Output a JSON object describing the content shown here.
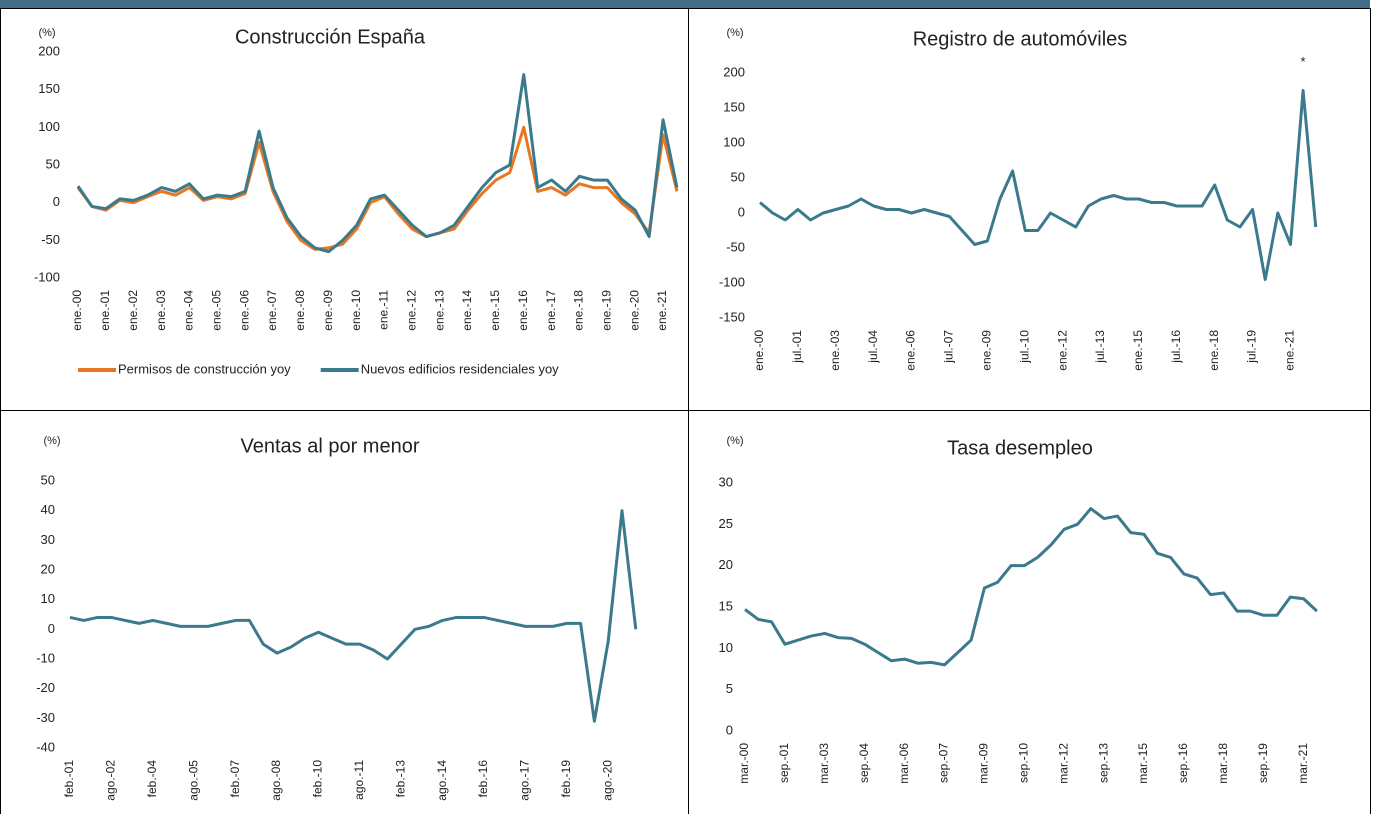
{
  "chart_data": [
    {
      "type": "line",
      "title": "Construcción España",
      "y_label": "(%)",
      "categories": [
        "ene.-00",
        null,
        "ene.-01",
        null,
        "ene.-02",
        null,
        "ene.-03",
        null,
        "ene.-04",
        null,
        "ene.-05",
        null,
        "ene.-06",
        null,
        "ene.-07",
        null,
        "ene.-08",
        null,
        "ene.-09",
        null,
        "ene.-10",
        null,
        "ene.-11",
        null,
        "ene.-12",
        null,
        "ene.-13",
        null,
        "ene.-14",
        null,
        "ene.-15",
        null,
        "ene.-16",
        null,
        "ene.-17",
        null,
        "ene.-18",
        null,
        "ene.-19",
        null,
        "ene.-20",
        null,
        "ene.-21",
        null
      ],
      "series": [
        {
          "name": "Permisos de construcción yoy",
          "color": "#e87722",
          "values": [
            20,
            -5,
            -10,
            3,
            0,
            8,
            15,
            10,
            20,
            3,
            8,
            5,
            12,
            80,
            15,
            -25,
            -50,
            -62,
            -60,
            -55,
            -35,
            0,
            8,
            -15,
            -35,
            -45,
            -40,
            -35,
            -10,
            12,
            30,
            40,
            100,
            15,
            20,
            10,
            25,
            20,
            20,
            0,
            -15,
            -40,
            90,
            15
          ]
        },
        {
          "name": "Nuevos edificios residenciales yoy",
          "color": "#3a7a8c",
          "values": [
            22,
            -5,
            -8,
            5,
            3,
            10,
            20,
            15,
            25,
            5,
            10,
            8,
            15,
            95,
            20,
            -20,
            -45,
            -60,
            -65,
            -50,
            -30,
            5,
            10,
            -10,
            -30,
            -45,
            -40,
            -30,
            -5,
            20,
            40,
            50,
            170,
            20,
            30,
            15,
            35,
            30,
            30,
            5,
            -10,
            -45,
            110,
            20
          ]
        }
      ],
      "ylim": [
        -100,
        200
      ],
      "yticks": [
        -100,
        -50,
        0,
        50,
        100,
        150,
        200
      ],
      "legend": "bottom"
    },
    {
      "type": "line",
      "title": "Registro de automóviles",
      "y_label": "(%)",
      "annotation": "*",
      "categories": [
        "ene.-00",
        null,
        null,
        "jul.-01",
        null,
        null,
        "ene.-03",
        null,
        null,
        "jul.-04",
        null,
        null,
        "ene.-06",
        null,
        null,
        "jul.-07",
        null,
        null,
        "ene.-09",
        null,
        null,
        "jul.-10",
        null,
        null,
        "ene.-12",
        null,
        null,
        "jul.-13",
        null,
        null,
        "ene.-15",
        null,
        null,
        "jul.-16",
        null,
        null,
        "ene.-18",
        null,
        null,
        "jul.-19",
        null,
        null,
        "ene.-21",
        null,
        null
      ],
      "series": [
        {
          "name": "Registro de automóviles",
          "color": "#3a7a8c",
          "values": [
            15,
            0,
            -10,
            5,
            -10,
            0,
            5,
            10,
            20,
            10,
            5,
            5,
            0,
            5,
            0,
            -5,
            -25,
            -45,
            -40,
            20,
            60,
            -25,
            -25,
            0,
            -10,
            -20,
            10,
            20,
            25,
            20,
            20,
            15,
            15,
            10,
            10,
            10,
            40,
            -10,
            -20,
            5,
            -95,
            0,
            -45,
            175,
            -20
          ]
        }
      ],
      "ylim": [
        -150,
        200
      ],
      "yticks": [
        -150,
        -100,
        -50,
        0,
        50,
        100,
        150,
        200
      ]
    },
    {
      "type": "line",
      "title": "Ventas al por menor",
      "y_label": "(%)",
      "categories": [
        "feb.-01",
        null,
        null,
        "ago.-02",
        null,
        null,
        "feb.-04",
        null,
        null,
        "ago.-05",
        null,
        null,
        "feb.-07",
        null,
        null,
        "ago.-08",
        null,
        null,
        "feb.-10",
        null,
        null,
        "ago.-11",
        null,
        null,
        "feb.-13",
        null,
        null,
        "ago.-14",
        null,
        null,
        "feb.-16",
        null,
        null,
        "ago.-17",
        null,
        null,
        "feb.-19",
        null,
        null,
        "ago.-20",
        null,
        null
      ],
      "series": [
        {
          "name": "Ventas al por menor",
          "color": "#3a7a8c",
          "values": [
            4,
            3,
            4,
            4,
            3,
            2,
            3,
            2,
            1,
            1,
            1,
            2,
            3,
            3,
            -5,
            -8,
            -6,
            -3,
            -1,
            -3,
            -5,
            -5,
            -7,
            -10,
            -5,
            0,
            1,
            3,
            4,
            4,
            4,
            3,
            2,
            1,
            1,
            1,
            2,
            2,
            -31,
            -4,
            40,
            0
          ]
        }
      ],
      "ylim": [
        -40,
        50
      ],
      "yticks": [
        -40,
        -30,
        -20,
        -10,
        0,
        10,
        20,
        30,
        40,
        50
      ]
    },
    {
      "type": "line",
      "title": "Tasa desempleo",
      "y_label": "(%)",
      "categories": [
        "mar.-00",
        null,
        null,
        "sep.-01",
        null,
        null,
        "mar.-03",
        null,
        null,
        "sep.-04",
        null,
        null,
        "mar.-06",
        null,
        null,
        "sep.-07",
        null,
        null,
        "mar.-09",
        null,
        null,
        "sep.-10",
        null,
        null,
        "mar.-12",
        null,
        null,
        "sep.-13",
        null,
        null,
        "mar.-15",
        null,
        null,
        "sep.-16",
        null,
        null,
        "mar.-18",
        null,
        null,
        "sep.-19",
        null,
        null,
        "mar.-21",
        null
      ],
      "series": [
        {
          "name": "Tasa desempleo",
          "color": "#3a7a8c",
          "values": [
            14.7,
            13.5,
            13.2,
            10.5,
            11,
            11.5,
            11.8,
            11.3,
            11.2,
            10.5,
            9.5,
            8.5,
            8.7,
            8.2,
            8.3,
            8,
            9.5,
            11,
            17.3,
            18,
            20,
            20,
            21,
            22.5,
            24.4,
            25,
            26.9,
            25.7,
            26,
            24,
            23.8,
            21.5,
            21,
            19,
            18.5,
            16.5,
            16.7,
            14.5,
            14.5,
            14,
            14,
            16.2,
            16,
            14.5
          ]
        }
      ],
      "ylim": [
        0,
        30
      ],
      "yticks": [
        0,
        5,
        10,
        15,
        20,
        25,
        30
      ]
    }
  ]
}
